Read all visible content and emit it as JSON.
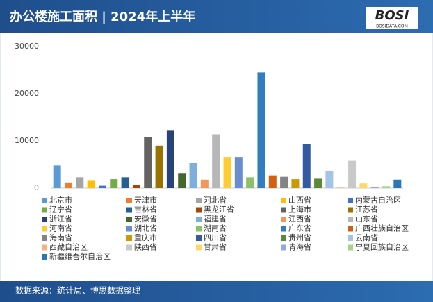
{
  "chart_data": {
    "type": "bar",
    "title": "办公楼施工面积 | 2024年上半年",
    "categories": [
      "北京市",
      "天津市",
      "河北省",
      "山西省",
      "内蒙古自治区",
      "辽宁省",
      "吉林省",
      "黑龙江省",
      "上海市",
      "江苏省",
      "浙江省",
      "安徽省",
      "福建省",
      "江西省",
      "山东省",
      "河南省",
      "湖北省",
      "湖南省",
      "广东省",
      "广西壮族自治区",
      "海南省",
      "重庆市",
      "四川省",
      "贵州省",
      "云南省",
      "西藏自治区",
      "陕西省",
      "甘肃省",
      "青海省",
      "宁夏回族自治区",
      "新疆维吾尔自治区"
    ],
    "values": [
      4800,
      1200,
      2300,
      1700,
      500,
      1900,
      2300,
      700,
      10800,
      9000,
      12300,
      3200,
      5300,
      1800,
      11400,
      6600,
      6600,
      2300,
      24500,
      2700,
      2400,
      1900,
      9400,
      2000,
      3600,
      100,
      5800,
      1000,
      300,
      400,
      1800
    ],
    "colors": [
      "#5b9bd5",
      "#ed7d31",
      "#a5a5a5",
      "#ffc000",
      "#4472c4",
      "#70ad47",
      "#255e91",
      "#9e480e",
      "#636363",
      "#997300",
      "#264478",
      "#43682b",
      "#7cafdd",
      "#f1975a",
      "#b7b7b7",
      "#ffcd33",
      "#698ed0",
      "#8cc168",
      "#327dc2",
      "#d26012",
      "#848484",
      "#cc9a00",
      "#335aa1",
      "#5a8a39",
      "#a3c4e5",
      "#f4b183",
      "#c9c9c9",
      "#ffd966",
      "#8faadc",
      "#a9d18e",
      "#2e75b6"
    ],
    "ylim": [
      0,
      30000
    ],
    "yticks": [
      0,
      10000,
      20000,
      30000
    ],
    "grid": false
  },
  "footer": {
    "source": "数据来源：统计局、博思数据整理"
  },
  "logo": {
    "brand": "BOSI",
    "site": "BOSIDATA.COM"
  }
}
